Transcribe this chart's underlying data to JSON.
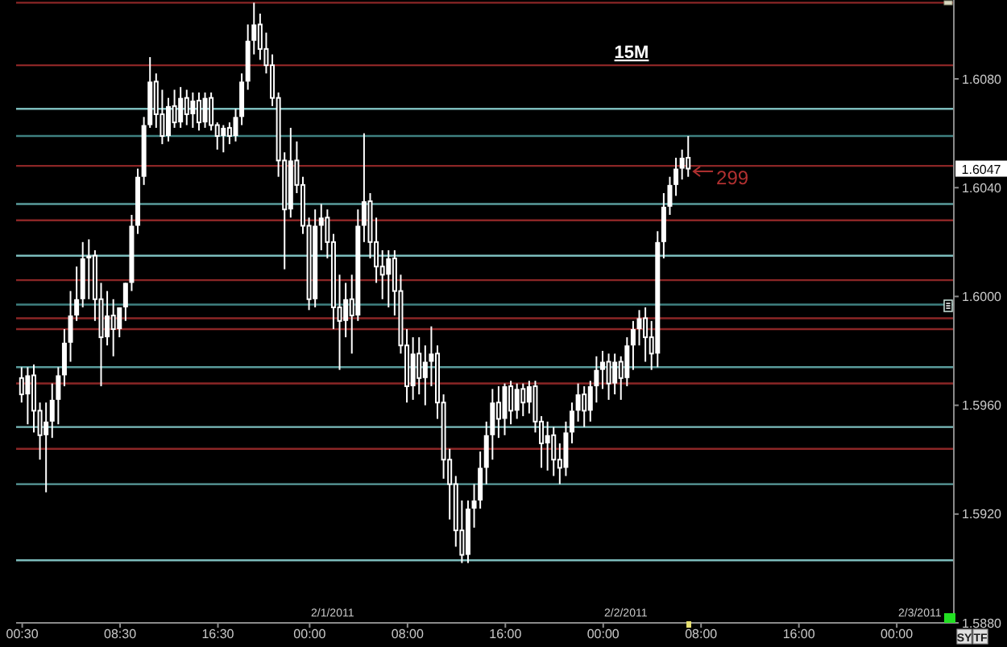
{
  "chart_data": {
    "type": "candlestick",
    "title": "15M",
    "color": "#ffffff",
    "x": [
      "2011-01-31T00:30",
      "2011-01-31T01:00",
      "2011-01-31T01:30",
      "2011-01-31T02:00",
      "2011-01-31T02:30",
      "2011-01-31T03:00",
      "2011-01-31T03:30",
      "2011-01-31T04:00",
      "2011-01-31T04:30",
      "2011-01-31T05:00",
      "2011-01-31T05:30",
      "2011-01-31T06:00",
      "2011-01-31T06:30",
      "2011-01-31T07:00",
      "2011-01-31T07:30",
      "2011-01-31T08:00",
      "2011-01-31T08:30",
      "2011-01-31T09:00",
      "2011-01-31T09:30",
      "2011-01-31T10:00",
      "2011-01-31T10:30",
      "2011-01-31T11:00",
      "2011-01-31T11:30",
      "2011-01-31T12:00",
      "2011-01-31T12:30",
      "2011-01-31T13:00",
      "2011-01-31T13:30",
      "2011-01-31T14:00",
      "2011-01-31T14:30",
      "2011-01-31T15:00",
      "2011-01-31T15:30",
      "2011-01-31T16:00",
      "2011-01-31T16:30",
      "2011-01-31T17:00",
      "2011-01-31T17:30",
      "2011-01-31T18:00",
      "2011-01-31T18:30",
      "2011-01-31T19:00",
      "2011-01-31T19:30",
      "2011-01-31T20:00",
      "2011-01-31T20:30",
      "2011-01-31T21:00",
      "2011-01-31T21:30",
      "2011-01-31T22:00",
      "2011-01-31T22:30",
      "2011-01-31T23:00",
      "2011-01-31T23:30",
      "2011-02-01T00:00",
      "2011-02-01T00:30",
      "2011-02-01T01:00",
      "2011-02-01T01:30",
      "2011-02-01T02:00",
      "2011-02-01T02:30",
      "2011-02-01T03:00",
      "2011-02-01T03:30",
      "2011-02-01T04:00",
      "2011-02-01T04:30",
      "2011-02-01T05:00",
      "2011-02-01T05:30",
      "2011-02-01T06:00",
      "2011-02-01T06:30",
      "2011-02-01T07:00",
      "2011-02-01T07:30",
      "2011-02-01T08:00",
      "2011-02-01T08:30",
      "2011-02-01T09:00",
      "2011-02-01T09:30",
      "2011-02-01T10:00",
      "2011-02-01T10:30",
      "2011-02-01T11:00",
      "2011-02-01T11:30",
      "2011-02-01T12:00",
      "2011-02-01T12:30",
      "2011-02-01T13:00",
      "2011-02-01T13:30",
      "2011-02-01T14:00",
      "2011-02-01T14:30",
      "2011-02-01T15:00",
      "2011-02-01T15:30",
      "2011-02-01T16:00",
      "2011-02-01T16:30",
      "2011-02-01T17:00",
      "2011-02-01T17:30",
      "2011-02-01T18:00",
      "2011-02-01T18:30",
      "2011-02-01T19:00",
      "2011-02-01T19:30",
      "2011-02-01T20:00",
      "2011-02-01T20:30",
      "2011-02-01T21:00",
      "2011-02-01T21:30",
      "2011-02-01T22:00",
      "2011-02-01T22:30",
      "2011-02-01T23:00",
      "2011-02-01T23:30",
      "2011-02-02T00:00",
      "2011-02-02T00:30",
      "2011-02-02T01:00",
      "2011-02-02T01:30",
      "2011-02-02T02:00",
      "2011-02-02T02:30",
      "2011-02-02T03:00",
      "2011-02-02T03:30",
      "2011-02-02T04:00",
      "2011-02-02T04:30",
      "2011-02-02T05:00",
      "2011-02-02T05:30",
      "2011-02-02T06:00",
      "2011-02-02T06:30",
      "2011-02-02T07:00"
    ],
    "ohlc": [
      [
        1.597,
        1.5974,
        1.5961,
        1.5964
      ],
      [
        1.5964,
        1.5974,
        1.5953,
        1.5971
      ],
      [
        1.5971,
        1.5975,
        1.595,
        1.5958
      ],
      [
        1.5958,
        1.5961,
        1.594,
        1.5949
      ],
      [
        1.5949,
        1.5961,
        1.5928,
        1.5954
      ],
      [
        1.5954,
        1.5968,
        1.5948,
        1.5962
      ],
      [
        1.5962,
        1.5974,
        1.5953,
        1.5971
      ],
      [
        1.5971,
        1.5988,
        1.5967,
        1.5983
      ],
      [
        1.5983,
        1.6002,
        1.5976,
        1.5993
      ],
      [
        1.5993,
        1.6011,
        1.5991,
        1.5999
      ],
      [
        1.5999,
        1.602,
        1.5996,
        1.6014
      ],
      [
        1.6014,
        1.6021,
        1.5999,
        1.6015
      ],
      [
        1.6015,
        1.6017,
        1.5991,
        1.5999
      ],
      [
        1.5999,
        1.6005,
        1.5967,
        1.5985
      ],
      [
        1.5985,
        1.6002,
        1.5982,
        1.5993
      ],
      [
        1.5993,
        1.5999,
        1.5978,
        1.5988
      ],
      [
        1.5988,
        1.5996,
        1.5985,
        1.5996
      ],
      [
        1.5996,
        1.6005,
        1.5991,
        1.6005
      ],
      [
        1.6005,
        1.603,
        1.6002,
        1.6026
      ],
      [
        1.6026,
        1.6047,
        1.6023,
        1.6044
      ],
      [
        1.6044,
        1.6066,
        1.6041,
        1.6063
      ],
      [
        1.6063,
        1.6088,
        1.6062,
        1.6079
      ],
      [
        1.6079,
        1.6082,
        1.6062,
        1.6067
      ],
      [
        1.6067,
        1.6076,
        1.6056,
        1.6059
      ],
      [
        1.6059,
        1.6073,
        1.6057,
        1.607
      ],
      [
        1.607,
        1.6076,
        1.6062,
        1.6064
      ],
      [
        1.6064,
        1.6077,
        1.6062,
        1.6073
      ],
      [
        1.6073,
        1.6076,
        1.6063,
        1.6067
      ],
      [
        1.6067,
        1.6075,
        1.6062,
        1.6072
      ],
      [
        1.6072,
        1.6075,
        1.6061,
        1.6064
      ],
      [
        1.6064,
        1.6075,
        1.6062,
        1.6073
      ],
      [
        1.6073,
        1.6075,
        1.6061,
        1.6063
      ],
      [
        1.6063,
        1.6064,
        1.6054,
        1.6059
      ],
      [
        1.6059,
        1.6063,
        1.6053,
        1.6062
      ],
      [
        1.6062,
        1.6064,
        1.6056,
        1.6059
      ],
      [
        1.6059,
        1.6069,
        1.6057,
        1.6066
      ],
      [
        1.6066,
        1.6082,
        1.6063,
        1.6079
      ],
      [
        1.6079,
        1.61,
        1.6076,
        1.6094
      ],
      [
        1.6094,
        1.6108,
        1.6089,
        1.61
      ],
      [
        1.61,
        1.6104,
        1.6087,
        1.6091
      ],
      [
        1.6091,
        1.6097,
        1.6082,
        1.6085
      ],
      [
        1.6085,
        1.6089,
        1.607,
        1.6073
      ],
      [
        1.6073,
        1.6075,
        1.6044,
        1.605
      ],
      [
        1.605,
        1.6053,
        1.601,
        1.6032
      ],
      [
        1.6032,
        1.6062,
        1.6029,
        1.605
      ],
      [
        1.605,
        1.6057,
        1.6038,
        1.6041
      ],
      [
        1.6041,
        1.6044,
        1.6023,
        1.6026
      ],
      [
        1.6026,
        1.6029,
        1.5995,
        1.5999
      ],
      [
        1.5999,
        1.6032,
        1.5996,
        1.6026
      ],
      [
        1.6026,
        1.6034,
        1.6017,
        1.6029
      ],
      [
        1.6029,
        1.6032,
        1.6014,
        1.602
      ],
      [
        1.602,
        1.6023,
        1.5988,
        1.5996
      ],
      [
        1.5996,
        1.6008,
        1.5973,
        1.5991
      ],
      [
        1.5991,
        1.6005,
        1.5985,
        1.5999
      ],
      [
        1.5999,
        1.6008,
        1.5979,
        1.5993
      ],
      [
        1.5993,
        1.6032,
        1.5991,
        1.6026
      ],
      [
        1.6026,
        1.606,
        1.602,
        1.6035
      ],
      [
        1.6035,
        1.6038,
        1.6014,
        1.602
      ],
      [
        1.602,
        1.6029,
        1.6005,
        1.6011
      ],
      [
        1.6011,
        1.6017,
        1.5999,
        1.6008
      ],
      [
        1.6008,
        1.6017,
        1.5996,
        1.6014
      ],
      [
        1.6014,
        1.6017,
        1.5993,
        1.6002
      ],
      [
        1.6002,
        1.6008,
        1.5979,
        1.5982
      ],
      [
        1.5982,
        1.5988,
        1.5961,
        1.5967
      ],
      [
        1.5967,
        1.5985,
        1.5962,
        1.5979
      ],
      [
        1.5979,
        1.5985,
        1.5964,
        1.597
      ],
      [
        1.597,
        1.5982,
        1.596,
        1.5976
      ],
      [
        1.5976,
        1.5989,
        1.5967,
        1.5979
      ],
      [
        1.5979,
        1.5982,
        1.5955,
        1.5961
      ],
      [
        1.5961,
        1.5964,
        1.5933,
        1.594
      ],
      [
        1.594,
        1.5944,
        1.5918,
        1.5931
      ],
      [
        1.5931,
        1.5934,
        1.5908,
        1.5914
      ],
      [
        1.5914,
        1.5925,
        1.5902,
        1.5905
      ],
      [
        1.5905,
        1.5925,
        1.5902,
        1.5922
      ],
      [
        1.5922,
        1.5931,
        1.5915,
        1.5925
      ],
      [
        1.5925,
        1.5943,
        1.5922,
        1.5937
      ],
      [
        1.5937,
        1.5954,
        1.5931,
        1.5949
      ],
      [
        1.5949,
        1.5966,
        1.594,
        1.5961
      ],
      [
        1.5961,
        1.5967,
        1.5948,
        1.5955
      ],
      [
        1.5955,
        1.5968,
        1.5949,
        1.5967
      ],
      [
        1.5967,
        1.5969,
        1.5953,
        1.5958
      ],
      [
        1.5958,
        1.5968,
        1.5955,
        1.5966
      ],
      [
        1.5966,
        1.5968,
        1.5956,
        1.5961
      ],
      [
        1.5961,
        1.5969,
        1.5957,
        1.5967
      ],
      [
        1.5967,
        1.5969,
        1.595,
        1.5954
      ],
      [
        1.5954,
        1.5956,
        1.5937,
        1.5946
      ],
      [
        1.5946,
        1.5954,
        1.5936,
        1.5949
      ],
      [
        1.5949,
        1.5952,
        1.5934,
        1.594
      ],
      [
        1.594,
        1.5946,
        1.5931,
        1.5937
      ],
      [
        1.5937,
        1.5954,
        1.5934,
        1.595
      ],
      [
        1.595,
        1.5961,
        1.5946,
        1.5958
      ],
      [
        1.5958,
        1.5968,
        1.5954,
        1.5964
      ],
      [
        1.5964,
        1.5967,
        1.5952,
        1.5958
      ],
      [
        1.5958,
        1.5969,
        1.5954,
        1.5967
      ],
      [
        1.5967,
        1.5978,
        1.5961,
        1.5973
      ],
      [
        1.5973,
        1.598,
        1.5966,
        1.5976
      ],
      [
        1.5976,
        1.5979,
        1.5962,
        1.5968
      ],
      [
        1.5968,
        1.5979,
        1.5964,
        1.5976
      ],
      [
        1.5976,
        1.5978,
        1.5962,
        1.597
      ],
      [
        1.597,
        1.5985,
        1.5967,
        1.5982
      ],
      [
        1.5982,
        1.5991,
        1.5973,
        1.5988
      ],
      [
        1.5988,
        1.5995,
        1.5982,
        1.5992
      ],
      [
        1.5992,
        1.5996,
        1.5976,
        1.5985
      ],
      [
        1.5985,
        1.5991,
        1.5973,
        1.5979
      ],
      [
        1.5979,
        1.6024,
        1.5974,
        1.602
      ],
      [
        1.602,
        1.6038,
        1.6014,
        1.6033
      ],
      [
        1.6033,
        1.6044,
        1.603,
        1.6041
      ],
      [
        1.6041,
        1.6051,
        1.6037,
        1.6047
      ],
      [
        1.6047,
        1.6054,
        1.6043,
        1.6051
      ],
      [
        1.6051,
        1.6059,
        1.6044,
        1.6047
      ]
    ],
    "xlim": [
      "2011-01-31T00:00",
      "2011-02-03T04:40"
    ],
    "xticks": [
      {
        "value": "2011-01-31T00:30",
        "label": "00:30"
      },
      {
        "value": "2011-01-31T08:30",
        "label": "08:30"
      },
      {
        "value": "2011-01-31T16:30",
        "label": "16:30"
      },
      {
        "value": "2011-02-01T00:00",
        "label": "00:00"
      },
      {
        "value": "2011-02-01T08:00",
        "label": "08:00"
      },
      {
        "value": "2011-02-01T16:00",
        "label": "16:00"
      },
      {
        "value": "2011-02-02T00:00",
        "label": "00:00"
      },
      {
        "value": "2011-02-02T08:00",
        "label": "08:00"
      },
      {
        "value": "2011-02-02T16:00",
        "label": "16:00"
      },
      {
        "value": "2011-02-03T00:00",
        "label": "00:00"
      }
    ],
    "ylim": [
      1.588,
      1.6109
    ],
    "yticks": [
      {
        "value": 1.588,
        "label": "1.5880"
      },
      {
        "value": 1.592,
        "label": "1.5920"
      },
      {
        "value": 1.596,
        "label": "1.5960"
      },
      {
        "value": 1.6,
        "label": "1.6000"
      },
      {
        "value": 1.604,
        "label": "1.6040"
      },
      {
        "value": 1.608,
        "label": "1.6080"
      }
    ],
    "ref_lines": [
      {
        "axis": "y",
        "value": 1.6108,
        "color": "#8b2626"
      },
      {
        "axis": "y",
        "value": 1.6085,
        "color": "#8b2626"
      },
      {
        "axis": "y",
        "value": 1.6069,
        "color": "#7cbcbc"
      },
      {
        "axis": "y",
        "value": 1.6059,
        "color": "#3f8080"
      },
      {
        "axis": "y",
        "value": 1.6048,
        "color": "#8b2626"
      },
      {
        "axis": "y",
        "value": 1.6034,
        "color": "#5a9c9c"
      },
      {
        "axis": "y",
        "value": 1.6028,
        "color": "#8b2626"
      },
      {
        "axis": "y",
        "value": 1.6015,
        "color": "#7cbcbc"
      },
      {
        "axis": "y",
        "value": 1.6006,
        "color": "#8b2626"
      },
      {
        "axis": "y",
        "value": 1.5997,
        "color": "#3f8080"
      },
      {
        "axis": "y",
        "value": 1.5992,
        "color": "#8b2626"
      },
      {
        "axis": "y",
        "value": 1.5988,
        "color": "#8b2626"
      },
      {
        "axis": "y",
        "value": 1.5974,
        "color": "#5a9c9c"
      },
      {
        "axis": "y",
        "value": 1.5968,
        "color": "#8b2626"
      },
      {
        "axis": "y",
        "value": 1.5952,
        "color": "#7cbcbc"
      },
      {
        "axis": "y",
        "value": 1.5944,
        "color": "#8b2626"
      },
      {
        "axis": "y",
        "value": 1.5931,
        "color": "#5a9c9c"
      },
      {
        "axis": "y",
        "value": 1.5903,
        "color": "#7cbcbc"
      }
    ],
    "annotations": [
      {
        "text": "299",
        "x": "2011-02-02T07:00",
        "y": 1.6046
      },
      {
        "text": "1.6047",
        "y": 1.6047
      },
      "2/1/2011",
      "2/2/2011",
      "2/3/2011",
      "SY",
      "TF"
    ]
  }
}
